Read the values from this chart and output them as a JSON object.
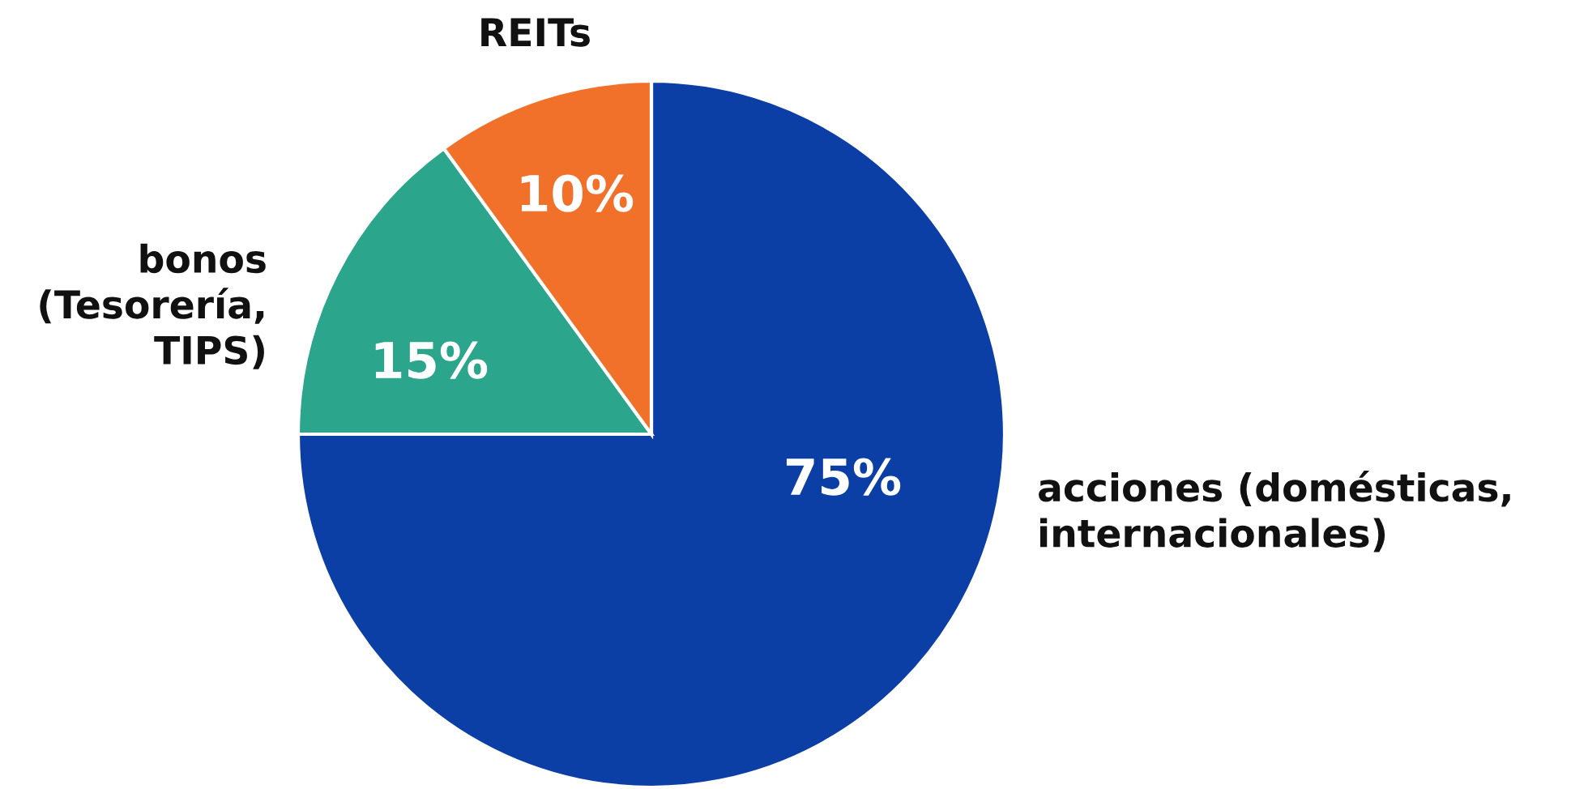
{
  "chart_data": {
    "type": "pie",
    "categories": [
      "acciones (domésticas,\ninternacionales)",
      "bonos\n(Tesorería,\nTIPS)",
      "REITs"
    ],
    "values": [
      75,
      15,
      10
    ],
    "colors": [
      "#0b3fa6",
      "#2ba58b",
      "#f1712b"
    ],
    "value_labels": [
      "75%",
      "15%",
      "10%"
    ]
  }
}
